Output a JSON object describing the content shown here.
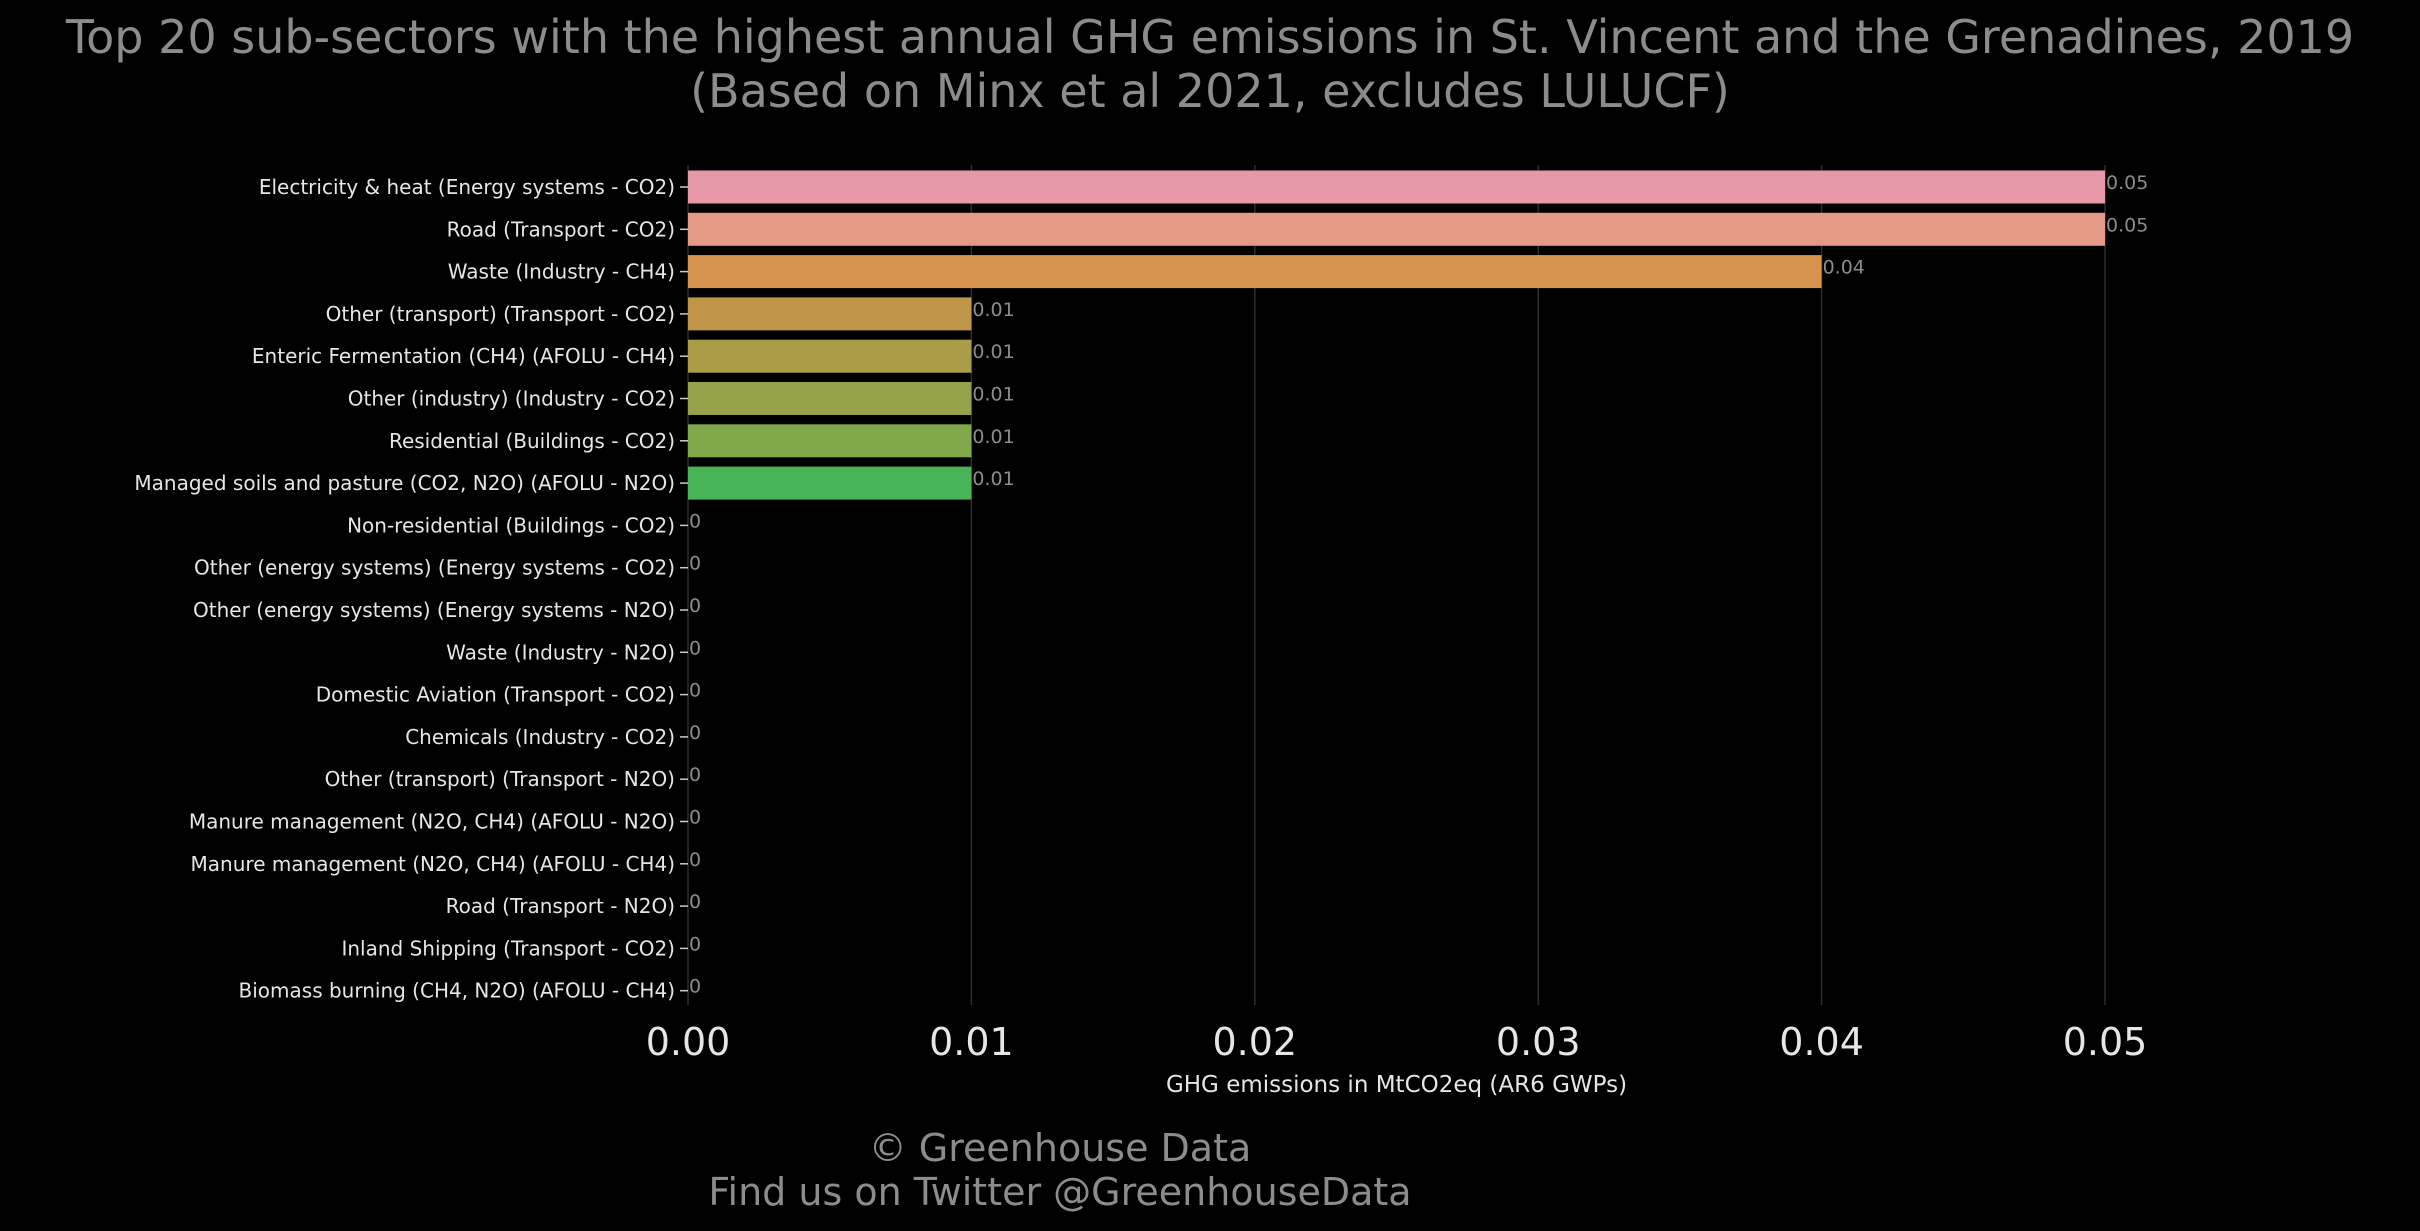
{
  "title": "Top 20 sub-sectors with the highest annual GHG emissions in St. Vincent and the Grenadines, 2019",
  "subtitle": "(Based on Minx et al 2021, excludes LULUCF)",
  "footer": {
    "line1": "© Greenhouse Data",
    "line2": "Find us on Twitter @GreenhouseData"
  },
  "chart_data": {
    "type": "bar",
    "orientation": "horizontal",
    "title": "Top 20 sub-sectors with the highest annual GHG emissions in St. Vincent and the Grenadines, 2019",
    "subtitle": "(Based on Minx et al 2021, excludes LULUCF)",
    "xlabel": "GHG emissions in MtCO2eq (AR6 GWPs)",
    "ylabel": "",
    "xlim": [
      0,
      0.05
    ],
    "xticks": [
      "0.00",
      "0.01",
      "0.02",
      "0.03",
      "0.04",
      "0.05"
    ],
    "grid": "vertical",
    "categories": [
      "Electricity & heat (Energy systems - CO2)",
      "Road (Transport - CO2)",
      "Waste (Industry - CH4)",
      "Other (transport) (Transport - CO2)",
      "Enteric Fermentation (CH4) (AFOLU - CH4)",
      "Other (industry) (Industry - CO2)",
      "Residential (Buildings - CO2)",
      "Managed soils and pasture (CO2, N2O) (AFOLU - N2O)",
      "Non-residential (Buildings - CO2)",
      "Other (energy systems) (Energy systems - CO2)",
      "Other (energy systems) (Energy systems - N2O)",
      "Waste (Industry - N2O)",
      "Domestic Aviation (Transport - CO2)",
      "Chemicals (Industry - CO2)",
      "Other (transport) (Transport - N2O)",
      "Manure management (N2O, CH4) (AFOLU - N2O)",
      "Manure management (N2O, CH4) (AFOLU - CH4)",
      "Road (Transport - N2O)",
      "Inland Shipping (Transport - CO2)",
      "Biomass burning (CH4, N2O) (AFOLU - CH4)"
    ],
    "values": [
      0.05,
      0.05,
      0.04,
      0.01,
      0.01,
      0.01,
      0.01,
      0.01,
      0,
      0,
      0,
      0,
      0,
      0,
      0,
      0,
      0,
      0,
      0,
      0
    ],
    "value_labels": [
      "0.05",
      "0.05",
      "0.04",
      "0.01",
      "0.01",
      "0.01",
      "0.01",
      "0.01",
      "0",
      "0",
      "0",
      "0",
      "0",
      "0",
      "0",
      "0",
      "0",
      "0",
      "0",
      "0"
    ],
    "colors": [
      "#e899a8",
      "#e59a88",
      "#d6944f",
      "#bf9648",
      "#ab9d48",
      "#96a249",
      "#7fa94b",
      "#47b557"
    ],
    "colors_note_free": true,
    "background": "#000000",
    "text_color": "#e6e6e6",
    "muted_color": "#8c8c8c"
  }
}
